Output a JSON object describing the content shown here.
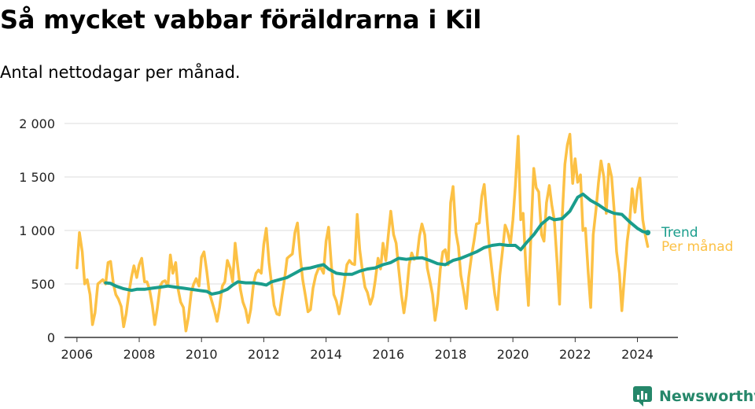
{
  "title": "Så mycket vabbar föräldrarna i Kil",
  "subtitle": "Antal nettodagar per månad.",
  "brand": {
    "name": "Newsworthy",
    "icon": "newsworthy-logo-icon",
    "color": "#25876a"
  },
  "chart_data": {
    "type": "line",
    "x_unit": "year (decimal)",
    "ylim": [
      0,
      2000
    ],
    "xlim": [
      2005.6,
      2025.3
    ],
    "y_ticks": [
      0,
      500,
      1000,
      1500,
      2000
    ],
    "y_tick_labels": [
      "0",
      "500",
      "1 000",
      "1 500",
      "2 000"
    ],
    "x_ticks": [
      2006,
      2008,
      2010,
      2012,
      2014,
      2016,
      2018,
      2020,
      2022,
      2024
    ],
    "x_tick_labels": [
      "2006",
      "2008",
      "2010",
      "2012",
      "2014",
      "2016",
      "2018",
      "2020",
      "2022",
      "2024"
    ],
    "grid": "horizontal",
    "legend": "right, at line ends",
    "series": [
      {
        "name": "Per månad",
        "color": "#fcc145",
        "points": [
          [
            2006.0,
            650
          ],
          [
            2006.08,
            980
          ],
          [
            2006.17,
            800
          ],
          [
            2006.25,
            500
          ],
          [
            2006.33,
            540
          ],
          [
            2006.42,
            400
          ],
          [
            2006.5,
            120
          ],
          [
            2006.58,
            230
          ],
          [
            2006.67,
            500
          ],
          [
            2006.75,
            520
          ],
          [
            2006.83,
            540
          ],
          [
            2006.92,
            500
          ],
          [
            2007.0,
            700
          ],
          [
            2007.08,
            710
          ],
          [
            2007.17,
            500
          ],
          [
            2007.25,
            400
          ],
          [
            2007.33,
            360
          ],
          [
            2007.42,
            290
          ],
          [
            2007.5,
            100
          ],
          [
            2007.58,
            220
          ],
          [
            2007.67,
            420
          ],
          [
            2007.75,
            560
          ],
          [
            2007.83,
            670
          ],
          [
            2007.92,
            560
          ],
          [
            2008.0,
            680
          ],
          [
            2008.08,
            740
          ],
          [
            2008.17,
            520
          ],
          [
            2008.25,
            520
          ],
          [
            2008.33,
            450
          ],
          [
            2008.42,
            300
          ],
          [
            2008.5,
            120
          ],
          [
            2008.58,
            270
          ],
          [
            2008.67,
            480
          ],
          [
            2008.75,
            520
          ],
          [
            2008.83,
            530
          ],
          [
            2008.92,
            480
          ],
          [
            2009.0,
            770
          ],
          [
            2009.08,
            600
          ],
          [
            2009.17,
            700
          ],
          [
            2009.25,
            450
          ],
          [
            2009.33,
            330
          ],
          [
            2009.42,
            280
          ],
          [
            2009.5,
            60
          ],
          [
            2009.58,
            190
          ],
          [
            2009.67,
            420
          ],
          [
            2009.75,
            500
          ],
          [
            2009.83,
            550
          ],
          [
            2009.92,
            480
          ],
          [
            2010.0,
            750
          ],
          [
            2010.08,
            800
          ],
          [
            2010.17,
            620
          ],
          [
            2010.25,
            420
          ],
          [
            2010.33,
            340
          ],
          [
            2010.42,
            250
          ],
          [
            2010.5,
            150
          ],
          [
            2010.58,
            280
          ],
          [
            2010.67,
            480
          ],
          [
            2010.75,
            520
          ],
          [
            2010.83,
            720
          ],
          [
            2010.92,
            650
          ],
          [
            2011.0,
            520
          ],
          [
            2011.08,
            880
          ],
          [
            2011.17,
            650
          ],
          [
            2011.25,
            450
          ],
          [
            2011.33,
            330
          ],
          [
            2011.42,
            260
          ],
          [
            2011.5,
            140
          ],
          [
            2011.58,
            260
          ],
          [
            2011.67,
            500
          ],
          [
            2011.75,
            600
          ],
          [
            2011.83,
            630
          ],
          [
            2011.92,
            600
          ],
          [
            2012.0,
            870
          ],
          [
            2012.08,
            1020
          ],
          [
            2012.17,
            700
          ],
          [
            2012.25,
            500
          ],
          [
            2012.33,
            300
          ],
          [
            2012.42,
            220
          ],
          [
            2012.5,
            210
          ],
          [
            2012.58,
            380
          ],
          [
            2012.67,
            550
          ],
          [
            2012.75,
            740
          ],
          [
            2012.83,
            760
          ],
          [
            2012.92,
            780
          ],
          [
            2013.0,
            980
          ],
          [
            2013.08,
            1070
          ],
          [
            2013.17,
            760
          ],
          [
            2013.25,
            540
          ],
          [
            2013.33,
            400
          ],
          [
            2013.42,
            240
          ],
          [
            2013.5,
            260
          ],
          [
            2013.58,
            460
          ],
          [
            2013.67,
            580
          ],
          [
            2013.75,
            640
          ],
          [
            2013.83,
            650
          ],
          [
            2013.92,
            600
          ],
          [
            2014.0,
            900
          ],
          [
            2014.08,
            1030
          ],
          [
            2014.17,
            680
          ],
          [
            2014.25,
            400
          ],
          [
            2014.33,
            340
          ],
          [
            2014.42,
            220
          ],
          [
            2014.5,
            350
          ],
          [
            2014.58,
            500
          ],
          [
            2014.67,
            680
          ],
          [
            2014.75,
            720
          ],
          [
            2014.83,
            690
          ],
          [
            2014.92,
            680
          ],
          [
            2015.0,
            1150
          ],
          [
            2015.08,
            820
          ],
          [
            2015.17,
            620
          ],
          [
            2015.25,
            470
          ],
          [
            2015.33,
            420
          ],
          [
            2015.42,
            310
          ],
          [
            2015.5,
            380
          ],
          [
            2015.58,
            530
          ],
          [
            2015.67,
            740
          ],
          [
            2015.75,
            640
          ],
          [
            2015.83,
            880
          ],
          [
            2015.92,
            720
          ],
          [
            2016.0,
            960
          ],
          [
            2016.08,
            1180
          ],
          [
            2016.17,
            960
          ],
          [
            2016.25,
            880
          ],
          [
            2016.33,
            650
          ],
          [
            2016.42,
            400
          ],
          [
            2016.5,
            230
          ],
          [
            2016.58,
            390
          ],
          [
            2016.67,
            680
          ],
          [
            2016.75,
            790
          ],
          [
            2016.83,
            730
          ],
          [
            2016.92,
            750
          ],
          [
            2017.0,
            950
          ],
          [
            2017.08,
            1060
          ],
          [
            2017.17,
            960
          ],
          [
            2017.25,
            650
          ],
          [
            2017.33,
            540
          ],
          [
            2017.42,
            400
          ],
          [
            2017.5,
            160
          ],
          [
            2017.58,
            320
          ],
          [
            2017.67,
            640
          ],
          [
            2017.75,
            800
          ],
          [
            2017.83,
            820
          ],
          [
            2017.92,
            680
          ],
          [
            2018.0,
            1260
          ],
          [
            2018.08,
            1410
          ],
          [
            2018.17,
            980
          ],
          [
            2018.25,
            850
          ],
          [
            2018.33,
            580
          ],
          [
            2018.42,
            430
          ],
          [
            2018.5,
            270
          ],
          [
            2018.58,
            560
          ],
          [
            2018.67,
            760
          ],
          [
            2018.75,
            900
          ],
          [
            2018.83,
            1060
          ],
          [
            2018.92,
            1070
          ],
          [
            2019.0,
            1320
          ],
          [
            2019.08,
            1430
          ],
          [
            2019.17,
            1100
          ],
          [
            2019.25,
            830
          ],
          [
            2019.33,
            620
          ],
          [
            2019.42,
            400
          ],
          [
            2019.5,
            260
          ],
          [
            2019.58,
            580
          ],
          [
            2019.67,
            820
          ],
          [
            2019.75,
            1050
          ],
          [
            2019.83,
            990
          ],
          [
            2019.92,
            870
          ],
          [
            2020.0,
            1100
          ],
          [
            2020.08,
            1420
          ],
          [
            2020.17,
            1880
          ],
          [
            2020.25,
            1100
          ],
          [
            2020.33,
            1160
          ],
          [
            2020.42,
            640
          ],
          [
            2020.5,
            300
          ],
          [
            2020.58,
            960
          ],
          [
            2020.67,
            1580
          ],
          [
            2020.75,
            1400
          ],
          [
            2020.83,
            1360
          ],
          [
            2020.92,
            960
          ],
          [
            2021.0,
            900
          ],
          [
            2021.08,
            1260
          ],
          [
            2021.17,
            1420
          ],
          [
            2021.25,
            1240
          ],
          [
            2021.33,
            1100
          ],
          [
            2021.42,
            700
          ],
          [
            2021.5,
            310
          ],
          [
            2021.58,
            1100
          ],
          [
            2021.67,
            1620
          ],
          [
            2021.75,
            1800
          ],
          [
            2021.83,
            1900
          ],
          [
            2021.92,
            1440
          ],
          [
            2022.0,
            1670
          ],
          [
            2022.08,
            1450
          ],
          [
            2022.17,
            1520
          ],
          [
            2022.25,
            1000
          ],
          [
            2022.33,
            1020
          ],
          [
            2022.42,
            600
          ],
          [
            2022.5,
            280
          ],
          [
            2022.58,
            960
          ],
          [
            2022.67,
            1200
          ],
          [
            2022.75,
            1450
          ],
          [
            2022.83,
            1650
          ],
          [
            2022.92,
            1500
          ],
          [
            2023.0,
            1160
          ],
          [
            2023.08,
            1620
          ],
          [
            2023.17,
            1500
          ],
          [
            2023.25,
            1200
          ],
          [
            2023.33,
            800
          ],
          [
            2023.42,
            600
          ],
          [
            2023.5,
            250
          ],
          [
            2023.58,
            560
          ],
          [
            2023.67,
            900
          ],
          [
            2023.75,
            1080
          ],
          [
            2023.83,
            1390
          ],
          [
            2023.92,
            1170
          ],
          [
            2024.0,
            1380
          ],
          [
            2024.08,
            1490
          ],
          [
            2024.17,
            1100
          ],
          [
            2024.25,
            960
          ],
          [
            2024.33,
            850
          ]
        ]
      },
      {
        "name": "Trend",
        "color": "#1a9d8c",
        "points": [
          [
            2006.92,
            510
          ],
          [
            2007.08,
            505
          ],
          [
            2007.25,
            480
          ],
          [
            2007.5,
            455
          ],
          [
            2007.75,
            440
          ],
          [
            2007.92,
            450
          ],
          [
            2008.17,
            450
          ],
          [
            2008.42,
            460
          ],
          [
            2008.67,
            470
          ],
          [
            2008.92,
            480
          ],
          [
            2009.17,
            470
          ],
          [
            2009.42,
            460
          ],
          [
            2009.67,
            450
          ],
          [
            2009.92,
            440
          ],
          [
            2010.17,
            430
          ],
          [
            2010.33,
            405
          ],
          [
            2010.58,
            420
          ],
          [
            2010.83,
            450
          ],
          [
            2011.0,
            490
          ],
          [
            2011.17,
            520
          ],
          [
            2011.42,
            510
          ],
          [
            2011.67,
            510
          ],
          [
            2011.92,
            500
          ],
          [
            2012.08,
            490
          ],
          [
            2012.25,
            520
          ],
          [
            2012.5,
            540
          ],
          [
            2012.75,
            560
          ],
          [
            2013.0,
            600
          ],
          [
            2013.25,
            640
          ],
          [
            2013.5,
            650
          ],
          [
            2013.75,
            670
          ],
          [
            2013.92,
            680
          ],
          [
            2014.08,
            640
          ],
          [
            2014.33,
            600
          ],
          [
            2014.58,
            590
          ],
          [
            2014.83,
            590
          ],
          [
            2015.08,
            620
          ],
          [
            2015.33,
            640
          ],
          [
            2015.58,
            650
          ],
          [
            2015.83,
            680
          ],
          [
            2016.08,
            700
          ],
          [
            2016.33,
            740
          ],
          [
            2016.58,
            730
          ],
          [
            2016.83,
            740
          ],
          [
            2017.08,
            745
          ],
          [
            2017.33,
            720
          ],
          [
            2017.58,
            690
          ],
          [
            2017.83,
            680
          ],
          [
            2018.08,
            720
          ],
          [
            2018.33,
            740
          ],
          [
            2018.58,
            770
          ],
          [
            2018.83,
            800
          ],
          [
            2019.08,
            840
          ],
          [
            2019.33,
            860
          ],
          [
            2019.58,
            870
          ],
          [
            2019.83,
            860
          ],
          [
            2020.08,
            860
          ],
          [
            2020.25,
            820
          ],
          [
            2020.42,
            880
          ],
          [
            2020.67,
            960
          ],
          [
            2020.92,
            1060
          ],
          [
            2021.17,
            1120
          ],
          [
            2021.33,
            1100
          ],
          [
            2021.58,
            1110
          ],
          [
            2021.83,
            1180
          ],
          [
            2022.08,
            1310
          ],
          [
            2022.25,
            1340
          ],
          [
            2022.5,
            1280
          ],
          [
            2022.75,
            1240
          ],
          [
            2023.0,
            1190
          ],
          [
            2023.25,
            1160
          ],
          [
            2023.5,
            1150
          ],
          [
            2023.75,
            1080
          ],
          [
            2024.0,
            1020
          ],
          [
            2024.17,
            990
          ],
          [
            2024.33,
            980
          ]
        ]
      }
    ]
  }
}
